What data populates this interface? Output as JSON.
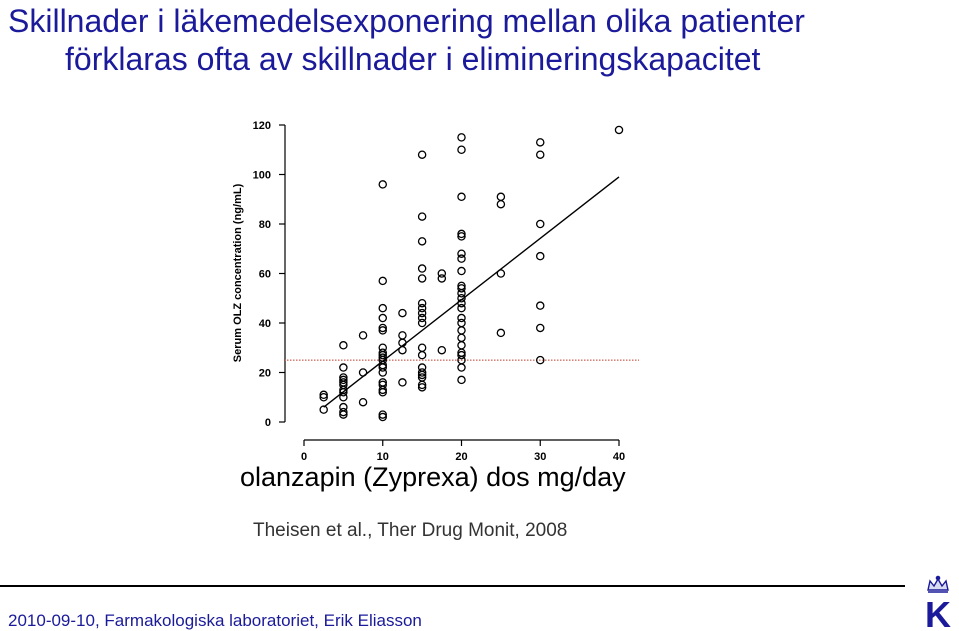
{
  "slide": {
    "title_line1": "Skillnader i läkemedelsexponering mellan olika patienter",
    "title_line2": "förklaras ofta av skillnader i elimineringskapacitet",
    "x_label": "olanzapin (Zyprexa) dos mg/day",
    "citation": "Theisen et al., Ther Drug Monit, 2008",
    "footer": "2010-09-10, Farmakologiska laboratoriet, Erik Eliasson",
    "logo_letter": "K"
  },
  "colors": {
    "title": "#1a1a9a",
    "reference_line": "#c0392b",
    "marker": "#000000"
  },
  "chart_data": {
    "type": "scatter",
    "ylabel": "Serum OLZ concentration (ng/mL)",
    "xlabel": "olanzapin (Zyprexa) dos mg/day",
    "xlim": [
      0,
      40
    ],
    "ylim": [
      0,
      120
    ],
    "xticks": [
      0,
      10,
      20,
      30,
      40
    ],
    "yticks": [
      0,
      20,
      40,
      60,
      80,
      100,
      120
    ],
    "ytick_labels": [
      "0",
      "20",
      "40",
      "60",
      "80",
      "100",
      "120"
    ],
    "xtick_labels": [
      "0",
      "10",
      "20",
      "30",
      "40"
    ],
    "grid": false,
    "regression_line": {
      "x": [
        2.5,
        40
      ],
      "y": [
        6,
        99
      ]
    },
    "reference_line_y": 25,
    "points": [
      {
        "x": 2.5,
        "y": 11
      },
      {
        "x": 2.5,
        "y": 10
      },
      {
        "x": 2.5,
        "y": 5
      },
      {
        "x": 5,
        "y": 31
      },
      {
        "x": 5,
        "y": 22
      },
      {
        "x": 5,
        "y": 18
      },
      {
        "x": 5,
        "y": 17
      },
      {
        "x": 5,
        "y": 16
      },
      {
        "x": 5,
        "y": 15
      },
      {
        "x": 5,
        "y": 13
      },
      {
        "x": 5,
        "y": 12
      },
      {
        "x": 5,
        "y": 10
      },
      {
        "x": 5,
        "y": 6
      },
      {
        "x": 5,
        "y": 4
      },
      {
        "x": 5,
        "y": 3
      },
      {
        "x": 7.5,
        "y": 35
      },
      {
        "x": 7.5,
        "y": 20
      },
      {
        "x": 7.5,
        "y": 8
      },
      {
        "x": 10,
        "y": 96
      },
      {
        "x": 10,
        "y": 57
      },
      {
        "x": 10,
        "y": 46
      },
      {
        "x": 10,
        "y": 42
      },
      {
        "x": 10,
        "y": 38
      },
      {
        "x": 10,
        "y": 37
      },
      {
        "x": 10,
        "y": 30
      },
      {
        "x": 10,
        "y": 28
      },
      {
        "x": 10,
        "y": 27
      },
      {
        "x": 10,
        "y": 26
      },
      {
        "x": 10,
        "y": 25
      },
      {
        "x": 10,
        "y": 23
      },
      {
        "x": 10,
        "y": 22
      },
      {
        "x": 10,
        "y": 20
      },
      {
        "x": 10,
        "y": 16
      },
      {
        "x": 10,
        "y": 15
      },
      {
        "x": 10,
        "y": 13
      },
      {
        "x": 10,
        "y": 12
      },
      {
        "x": 10,
        "y": 3
      },
      {
        "x": 10,
        "y": 2
      },
      {
        "x": 12.5,
        "y": 44
      },
      {
        "x": 12.5,
        "y": 35
      },
      {
        "x": 12.5,
        "y": 32
      },
      {
        "x": 12.5,
        "y": 29
      },
      {
        "x": 12.5,
        "y": 16
      },
      {
        "x": 15,
        "y": 108
      },
      {
        "x": 15,
        "y": 83
      },
      {
        "x": 15,
        "y": 73
      },
      {
        "x": 15,
        "y": 62
      },
      {
        "x": 15,
        "y": 58
      },
      {
        "x": 15,
        "y": 48
      },
      {
        "x": 15,
        "y": 46
      },
      {
        "x": 15,
        "y": 44
      },
      {
        "x": 15,
        "y": 42
      },
      {
        "x": 15,
        "y": 40
      },
      {
        "x": 15,
        "y": 30
      },
      {
        "x": 15,
        "y": 27
      },
      {
        "x": 15,
        "y": 22
      },
      {
        "x": 15,
        "y": 20
      },
      {
        "x": 15,
        "y": 19
      },
      {
        "x": 15,
        "y": 18
      },
      {
        "x": 15,
        "y": 15
      },
      {
        "x": 15,
        "y": 14
      },
      {
        "x": 17.5,
        "y": 60
      },
      {
        "x": 17.5,
        "y": 58
      },
      {
        "x": 17.5,
        "y": 29
      },
      {
        "x": 20,
        "y": 115
      },
      {
        "x": 20,
        "y": 110
      },
      {
        "x": 20,
        "y": 91
      },
      {
        "x": 20,
        "y": 76
      },
      {
        "x": 20,
        "y": 75
      },
      {
        "x": 20,
        "y": 68
      },
      {
        "x": 20,
        "y": 66
      },
      {
        "x": 20,
        "y": 61
      },
      {
        "x": 20,
        "y": 55
      },
      {
        "x": 20,
        "y": 54
      },
      {
        "x": 20,
        "y": 52
      },
      {
        "x": 20,
        "y": 50
      },
      {
        "x": 20,
        "y": 48
      },
      {
        "x": 20,
        "y": 46
      },
      {
        "x": 20,
        "y": 42
      },
      {
        "x": 20,
        "y": 40
      },
      {
        "x": 20,
        "y": 37
      },
      {
        "x": 20,
        "y": 34
      },
      {
        "x": 20,
        "y": 31
      },
      {
        "x": 20,
        "y": 28
      },
      {
        "x": 20,
        "y": 27
      },
      {
        "x": 20,
        "y": 25
      },
      {
        "x": 20,
        "y": 22
      },
      {
        "x": 20,
        "y": 17
      },
      {
        "x": 25,
        "y": 91
      },
      {
        "x": 25,
        "y": 88
      },
      {
        "x": 25,
        "y": 60
      },
      {
        "x": 25,
        "y": 36
      },
      {
        "x": 30,
        "y": 113
      },
      {
        "x": 30,
        "y": 108
      },
      {
        "x": 30,
        "y": 80
      },
      {
        "x": 30,
        "y": 67
      },
      {
        "x": 30,
        "y": 47
      },
      {
        "x": 30,
        "y": 38
      },
      {
        "x": 30,
        "y": 25
      },
      {
        "x": 40,
        "y": 118
      }
    ]
  }
}
